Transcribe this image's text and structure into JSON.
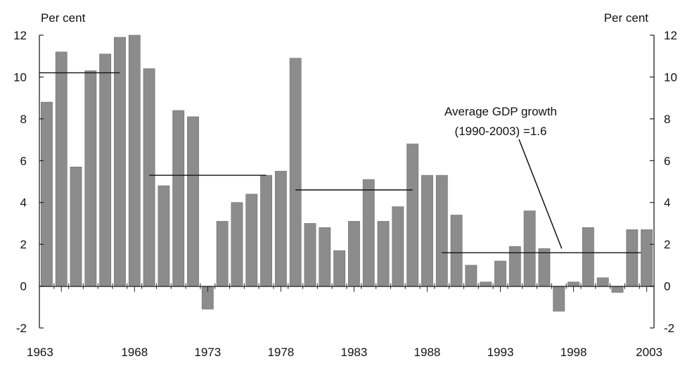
{
  "chart_data": {
    "type": "bar",
    "title": "",
    "xlabel": "",
    "ylabel_left": "Per cent",
    "ylabel_right": "Per cent",
    "ylim": [
      -2,
      12
    ],
    "yticks": [
      "-2",
      "0",
      "2",
      "4",
      "6",
      "8",
      "10",
      "12"
    ],
    "yticks_right": [
      "-2",
      "0",
      "2",
      "4",
      "6",
      "8",
      "10",
      "12"
    ],
    "ytick_values": [
      -2,
      0,
      2,
      4,
      6,
      8,
      10,
      12
    ],
    "xtick_labels": [
      "1963",
      "1968",
      "1973",
      "1978",
      "1983",
      "1988",
      "1993",
      "1998",
      "2003"
    ],
    "xtick_years": [
      1963,
      1968,
      1973,
      1978,
      1983,
      1988,
      1993,
      1998,
      2003
    ],
    "grid": false,
    "categories": [
      1962,
      1963,
      1964,
      1965,
      1966,
      1967,
      1968,
      1969,
      1970,
      1971,
      1972,
      1973,
      1974,
      1975,
      1976,
      1977,
      1978,
      1979,
      1980,
      1981,
      1982,
      1983,
      1984,
      1985,
      1986,
      1987,
      1988,
      1989,
      1990,
      1991,
      1992,
      1993,
      1994,
      1995,
      1996,
      1997,
      1998,
      1999,
      2000,
      2001,
      2002,
      2003
    ],
    "series": [
      {
        "name": "GDP growth",
        "color": "#8c8c8c",
        "values": [
          8.8,
          11.2,
          5.7,
          10.3,
          11.1,
          11.9,
          12.0,
          10.4,
          4.8,
          8.4,
          8.1,
          -1.1,
          3.1,
          4.0,
          4.4,
          5.3,
          5.5,
          10.9,
          3.0,
          2.8,
          1.7,
          3.1,
          5.1,
          3.1,
          3.8,
          6.8,
          5.3,
          5.3,
          3.4,
          1.0,
          0.2,
          1.2,
          1.9,
          3.6,
          1.8,
          -1.2,
          0.2,
          2.8,
          0.4,
          -0.3,
          2.7,
          2.7
        ]
      }
    ],
    "averages": [
      {
        "from": 1962,
        "to": 1967.5,
        "value": 10.2
      },
      {
        "from": 1969.5,
        "to": 1977.5,
        "value": 5.3
      },
      {
        "from": 1979.5,
        "to": 1987.5,
        "value": 4.6
      },
      {
        "from": 1989.5,
        "to": 2003,
        "value": 1.6
      }
    ],
    "annotations": [
      {
        "line1": "Average GDP growth",
        "line2": "(1990-2003) =1.6",
        "points_to_year": 1997,
        "points_to_value": 1.8
      }
    ]
  }
}
